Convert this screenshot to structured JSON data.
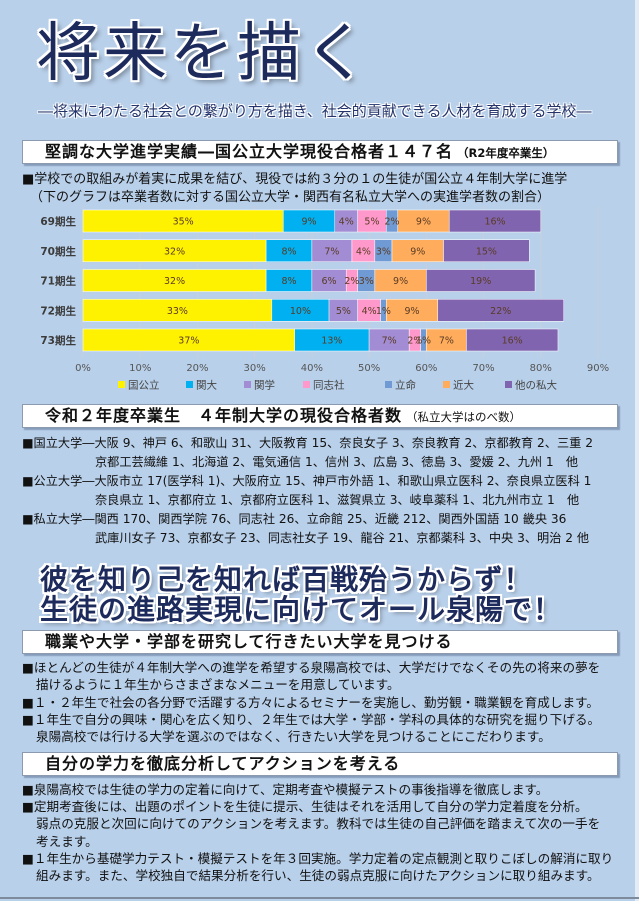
{
  "colors": {
    "page_background": "#b9d0ea",
    "title": "#1d2a5c",
    "header_background": "#ffffff",
    "header_border": "#8c9ab0",
    "text": "#111111"
  },
  "title": "将来を描く",
  "subtitle": "―将来にわたる社会との繋がり方を描き、社会的貢献できる人材を育成する学校―",
  "section1": {
    "heading": "堅調な大学進学実績―国公立大学現役合格者１４７名",
    "heading_note": "（R2年度卒業生）",
    "lines": [
      "■学校での取組みが着実に成果を結び、現役では約３分の１の生徒が国公立４年制大学に進学",
      "（下のグラフは卒業者数に対する国公立大学・関西有名私立大学への実進学者数の割合）"
    ]
  },
  "chart_data": {
    "type": "bar",
    "orientation": "horizontal",
    "stacked": true,
    "categories": [
      "69期生",
      "70期生",
      "71期生",
      "72期生",
      "73期生"
    ],
    "series": [
      {
        "name": "国公立",
        "color": "#fff200",
        "values": [
          35,
          32,
          32,
          33,
          37
        ]
      },
      {
        "name": "関大",
        "color": "#00b0f0",
        "values": [
          9,
          8,
          8,
          10,
          13
        ]
      },
      {
        "name": "関学",
        "color": "#a28cd4",
        "values": [
          4,
          7,
          6,
          5,
          7
        ]
      },
      {
        "name": "同志社",
        "color": "#ff99cc",
        "values": [
          5,
          4,
          2,
          4,
          2
        ]
      },
      {
        "name": "立命",
        "color": "#6f9ad4",
        "values": [
          2,
          3,
          3,
          1,
          1
        ]
      },
      {
        "name": "近大",
        "color": "#ffad5c",
        "values": [
          9,
          9,
          9,
          9,
          7
        ]
      },
      {
        "name": "他の私大",
        "color": "#8064b0",
        "values": [
          16,
          15,
          19,
          22,
          16
        ]
      }
    ],
    "value_suffix": "%",
    "data_label_color": "#5a3b23",
    "xlim": [
      0,
      90
    ],
    "xticks": [
      "0%",
      "10%",
      "20%",
      "30%",
      "40%",
      "50%",
      "60%",
      "70%",
      "80%",
      "90%"
    ],
    "grid": true,
    "legend": "bottom"
  },
  "section2": {
    "heading": "令和２年度卒業生　４年制大学の現役合格者数",
    "heading_note": "（私立大学はのべ数）",
    "lines": [
      "■国立大学―大阪 9、神戸 6、和歌山 31、大阪教育 15、奈良女子 3、奈良教育 2、京都教育 2、三重 2",
      "京都工芸繊維 1、北海道 2、電気通信 1、信州 3、広島 3、徳島 3、愛媛 2、九州 1　他",
      "■公立大学―大阪市立 17(医学科 1)、大阪府立 15、神戸市外語 1、和歌山県立医科 2、奈良県立医科 1",
      "奈良県立 1、京都府立 1、京都府立医科 1、滋賀県立 3、岐阜薬科 1、北九州市立 1　他",
      "■私立大学―関西 170、関西学院 76、同志社 26、立命館 25、近畿 212、関西外国語 10 畿央 36",
      "武庫川女子 73、京都女子 23、同志社女子 19、龍谷 21、京都薬科 3、中央 3、明治 2 他"
    ]
  },
  "slogan": {
    "line1": "彼を知り己を知れば百戦殆うからず！",
    "line2": "生徒の進路実現に向けてオール泉陽で！"
  },
  "section3": {
    "heading": "職業や大学・学部を研究して行きたい大学を見つける",
    "lines": [
      "■ほとんどの生徒が４年制大学への進学を希望する泉陽高校では、大学だけでなくその先の将来の夢を",
      "描けるように１年生からさまざまなメニューを用意しています。",
      "■１・２年生で社会の各分野で活躍する方々によるセミナーを実施し、勤労観・職業観を育成します。",
      "■１年生で自分の興味・関心を広く知り、２年生では大学・学部・学科の具体的な研究を掘り下げる。",
      "泉陽高校では行ける大学を選ぶのではなく、行きたい大学を見つけることにこだわります。"
    ]
  },
  "section4": {
    "heading": "自分の学力を徹底分析してアクションを考える",
    "lines": [
      "■泉陽高校では生徒の学力の定着に向けて、定期考査や模擬テストの事後指導を徹底します。",
      "■定期考査後には、出題のポイントを生徒に提示、生徒はそれを活用して自分の学力定着度を分析。",
      "弱点の克服と次回に向けてのアクションを考えます。教科では生徒の自己評価を踏まえて次の一手を",
      "考えます。",
      "■１年生から基礎学力テスト・模擬テストを年３回実施。学力定着の定点観測と取りこぼしの解消に取り",
      "組みます。また、学校独自で結果分析を行い、生徒の弱点克服に向けたアクションに取り組みます。"
    ]
  }
}
